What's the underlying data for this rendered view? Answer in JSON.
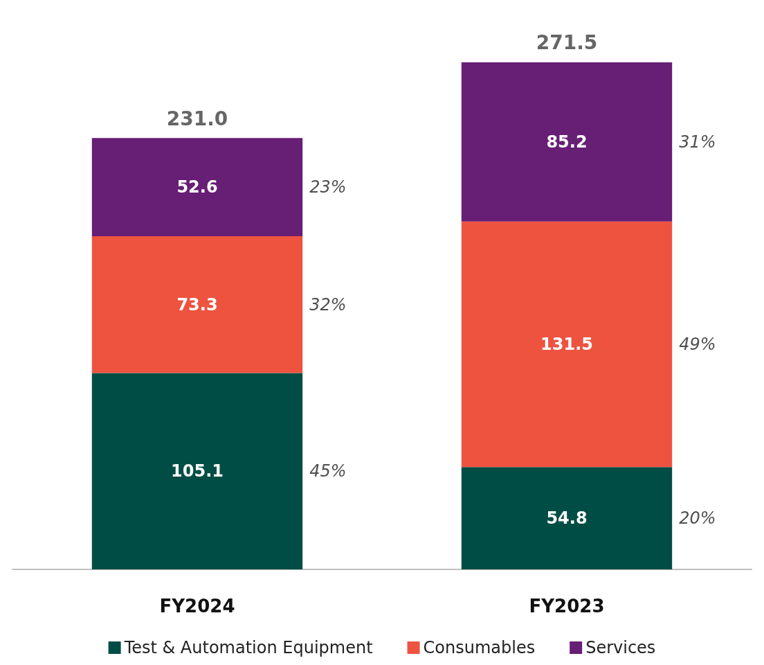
{
  "chart_data": {
    "type": "bar",
    "stacked": true,
    "categories": [
      "FY2024",
      "FY2023"
    ],
    "series": [
      {
        "name": "Test & Automation Equipment",
        "color": "#004d45",
        "values": [
          105.1,
          54.8
        ]
      },
      {
        "name": "Consumables",
        "color": "#ee5340",
        "values": [
          73.3,
          131.5
        ]
      },
      {
        "name": "Services",
        "color": "#671e75",
        "values": [
          52.6,
          85.2
        ]
      }
    ],
    "data_labels": true,
    "totals": [
      "231.0",
      "271.5"
    ],
    "annotations": [
      "45%",
      "32%",
      "23%",
      "20%",
      "49%",
      "31%"
    ],
    "legend": "bottom",
    "grid": false
  }
}
